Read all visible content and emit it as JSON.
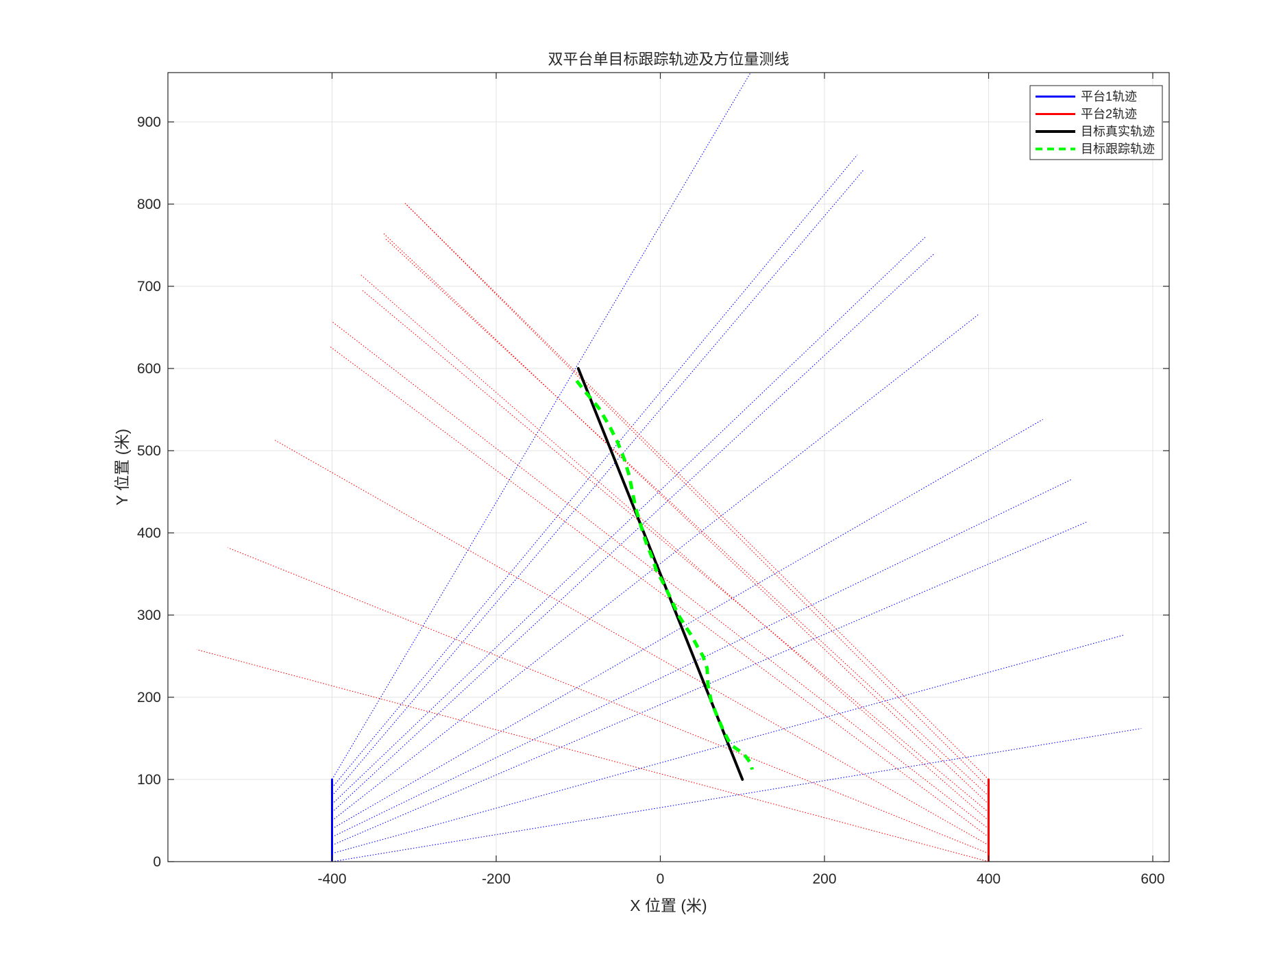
{
  "chart_data": {
    "type": "line",
    "title": "双平台单目标跟踪轨迹及方位量测线",
    "xlabel": "X 位置 (米)",
    "ylabel": "Y 位置 (米)",
    "xlim": [
      -600,
      620
    ],
    "ylim": [
      0,
      960
    ],
    "xticks": [
      -400,
      -200,
      0,
      200,
      400,
      600
    ],
    "yticks": [
      0,
      100,
      200,
      300,
      400,
      500,
      600,
      700,
      800,
      900
    ],
    "grid": true,
    "legend_position": "top-right",
    "colors": {
      "platform1": "#0000ff",
      "platform2": "#ff0000",
      "target_true": "#000000",
      "target_track": "#00ff00",
      "grid": "#e3e3e3",
      "axes": "#262626"
    },
    "series": [
      {
        "name": "平台1轨迹",
        "style": "solid",
        "color": "#0000ff",
        "x": [
          -400,
          -400
        ],
        "y": [
          0,
          100
        ]
      },
      {
        "name": "平台2轨迹",
        "style": "solid",
        "color": "#ff0000",
        "x": [
          400,
          400
        ],
        "y": [
          0,
          100
        ]
      },
      {
        "name": "目标真实轨迹",
        "style": "solid",
        "color": "#000000",
        "x": [
          -100,
          100
        ],
        "y": [
          600,
          100
        ]
      },
      {
        "name": "目标跟踪轨迹",
        "style": "dashed",
        "color": "#00ff00",
        "x": [
          -102,
          -90,
          -75,
          -62,
          -52,
          -44,
          -38,
          -34,
          -30,
          -24,
          -18,
          -10,
          -5,
          2,
          8,
          15,
          22,
          30,
          38,
          45,
          52,
          57,
          58,
          62,
          70,
          78,
          86,
          96,
          104,
          110,
          112
        ],
        "y": [
          585,
          570,
          552,
          530,
          510,
          490,
          470,
          450,
          430,
          410,
          390,
          370,
          355,
          342,
          330,
          315,
          300,
          287,
          275,
          262,
          250,
          235,
          215,
          195,
          175,
          157,
          142,
          135,
          128,
          120,
          112
        ]
      }
    ],
    "bearing_lines": {
      "platform1": [
        {
          "x0": -400,
          "y0": 0,
          "x1": 586,
          "y1": 162
        },
        {
          "x0": -400,
          "y0": 10,
          "x1": 566,
          "y1": 276
        },
        {
          "x0": -400,
          "y0": 20,
          "x1": 519,
          "y1": 413
        },
        {
          "x0": -400,
          "y0": 30,
          "x1": 501,
          "y1": 465
        },
        {
          "x0": -400,
          "y0": 40,
          "x1": 466,
          "y1": 538
        },
        {
          "x0": -400,
          "y0": 50,
          "x1": 388,
          "y1": 666
        },
        {
          "x0": -400,
          "y0": 60,
          "x1": 334,
          "y1": 740
        },
        {
          "x0": -400,
          "y0": 70,
          "x1": 323,
          "y1": 760
        },
        {
          "x0": -400,
          "y0": 80,
          "x1": 248,
          "y1": 842
        },
        {
          "x0": -400,
          "y0": 90,
          "x1": 240,
          "y1": 860
        },
        {
          "x0": -400,
          "y0": 100,
          "x1": 110,
          "y1": 960
        }
      ],
      "platform2": [
        {
          "x0": 400,
          "y0": 0,
          "x1": -565,
          "y1": 258
        },
        {
          "x0": 400,
          "y0": 10,
          "x1": -527,
          "y1": 382
        },
        {
          "x0": 400,
          "y0": 20,
          "x1": -470,
          "y1": 513
        },
        {
          "x0": 400,
          "y0": 30,
          "x1": -403,
          "y1": 627
        },
        {
          "x0": 400,
          "y0": 40,
          "x1": -400,
          "y1": 657
        },
        {
          "x0": 400,
          "y0": 50,
          "x1": -365,
          "y1": 714
        },
        {
          "x0": 400,
          "y0": 60,
          "x1": -363,
          "y1": 695
        },
        {
          "x0": 400,
          "y0": 70,
          "x1": -338,
          "y1": 765
        },
        {
          "x0": 400,
          "y0": 80,
          "x1": -335,
          "y1": 758
        },
        {
          "x0": 400,
          "y0": 90,
          "x1": -312,
          "y1": 802
        },
        {
          "x0": 400,
          "y0": 100,
          "x1": -310,
          "y1": 800
        }
      ]
    }
  }
}
